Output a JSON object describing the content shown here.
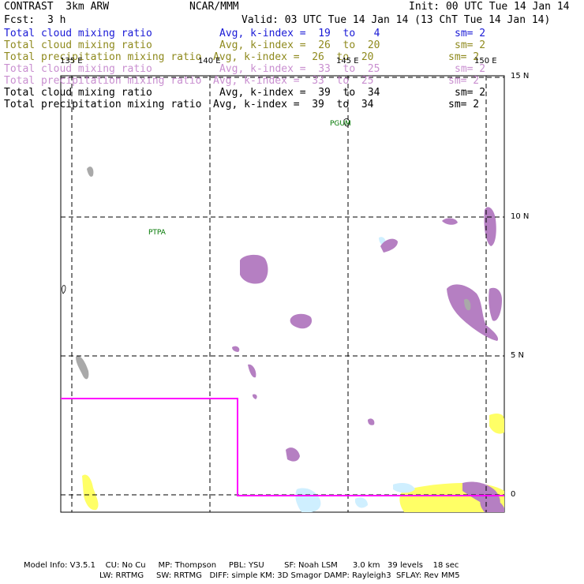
{
  "header": {
    "title": "CONTRAST  3km ARW",
    "center": "NCAR/MMM",
    "init": "Init: 00 UTC Tue 14 Jan 14",
    "fcst_label": "Fcst:",
    "fcst_value": "3 h",
    "valid": "Valid: 03 UTC Tue 14 Jan 14 (13 ChT Tue 14 Jan 14)"
  },
  "legend": [
    {
      "field": "Total cloud mixing ratio",
      "avg": "Avg, k-index =  19  to   4",
      "sm": "sm= 2",
      "color": "#1a1ad6"
    },
    {
      "field": "Total cloud mixing ratio",
      "avg": "Avg, k-index =  26  to  20",
      "sm": "sm= 2",
      "color": "#8f8a1e"
    },
    {
      "field": "Total precipitation mixing ratio",
      "avg": "Avg, k-index =  26  to  20",
      "sm": "sm= 2",
      "color": "#8f8a1e"
    },
    {
      "field": "Total cloud mixing ratio",
      "avg": "Avg, k-index =  33  to  25",
      "sm": "sm= 2",
      "color": "#c98fd0"
    },
    {
      "field": "Total precipitation mixing ratio",
      "avg": "Avg, k-index =  33  to  25",
      "sm": "sm= 2",
      "color": "#c98fd0"
    },
    {
      "field": "Total cloud mixing ratio",
      "avg": "Avg, k-index =  39  to  34",
      "sm": "sm= 2",
      "color": "#000000"
    },
    {
      "field": "Total precipitation mixing ratio",
      "avg": "Avg, k-index =  39  to  34",
      "sm": "sm= 2",
      "color": "#000000"
    }
  ],
  "axes": {
    "lon_labels": [
      "135 E",
      "140 E",
      "145 E",
      "150 E"
    ],
    "lat_labels": [
      "15 N",
      "10 N",
      "5 N",
      "0"
    ]
  },
  "stations": {
    "guam": "PGUM",
    "palau": "PTPA"
  },
  "colors": {
    "grid": "#000000",
    "domain_box": "#ff00ff",
    "cloud_high": "#b57fc2",
    "cloud_low": "#a9a9a9",
    "precip": "#ffff66",
    "precip_light": "#cfefff",
    "station": "#007700"
  },
  "footer": {
    "line1": "Model Info: V3.5.1    CU: No Cu     MP: Thompson     PBL: YSU        SF: Noah LSM      3.0 km   39 levels    18 sec",
    "line2": "LW: RRTMG     SW: RRTMG   DIFF: simple KM: 3D Smagor DAMP: Rayleigh3  SFLAY: Rev MM5"
  }
}
